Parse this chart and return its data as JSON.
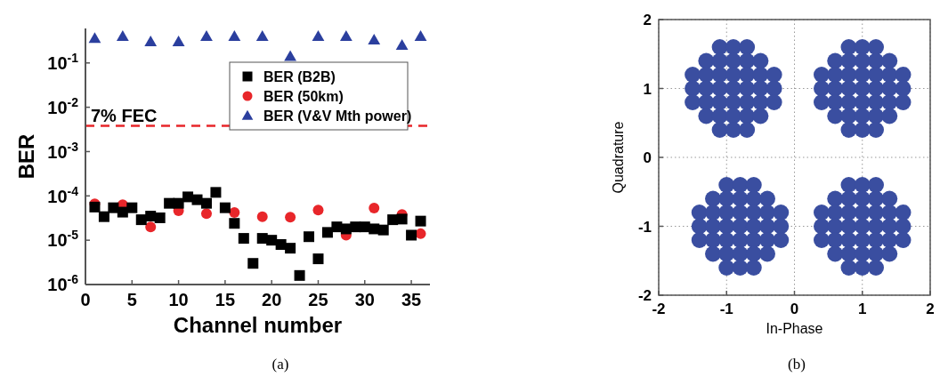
{
  "chart_data": [
    {
      "type": "scatter",
      "xlabel": "Channel number",
      "ylabel": "BER",
      "log": "y",
      "legend": "top right",
      "grid": false,
      "xlim": [
        0,
        37
      ],
      "xticks": [
        0,
        5,
        10,
        15,
        20,
        25,
        30,
        35
      ],
      "ylim": [
        1e-06,
        0.6
      ],
      "yticks": [
        {
          "value": 1e-06,
          "label": "10$^{-6}$"
        },
        {
          "value": 1e-05,
          "label": "10$^{-5}$"
        },
        {
          "value": 0.0001,
          "label": "10$^{-4}$"
        },
        {
          "value": 0.001,
          "label": "10$^{-3}$"
        },
        {
          "value": 0.01,
          "label": "10$^{-2}$"
        },
        {
          "value": 0.1,
          "label": "10$^{-1}$"
        }
      ],
      "ref_lines": [
        {
          "axis": "y",
          "value": 0.0038,
          "label": "7% FEC",
          "color": "#e8262a",
          "line_style": "dashed"
        }
      ],
      "annotations": [
        "(a)"
      ],
      "series": [
        {
          "name": "BER (B2B)",
          "color": "#000000",
          "marker": "square",
          "x": [
            1,
            2,
            3,
            4,
            5,
            6,
            7,
            8,
            9,
            10,
            11,
            12,
            13,
            14,
            15,
            16,
            17,
            18,
            19,
            20,
            21,
            22,
            23,
            24,
            25,
            26,
            27,
            28,
            29,
            30,
            31,
            32,
            33,
            34,
            35,
            36
          ],
          "values": [
            5.6e-05,
            3.4e-05,
            5.4e-05,
            4.3e-05,
            5.4e-05,
            2.9e-05,
            3.5e-05,
            3.2e-05,
            6.8e-05,
            6.8e-05,
            9.5e-05,
            8.2e-05,
            6.8e-05,
            0.00012,
            5.4e-05,
            2.4e-05,
            1.1e-05,
            3e-06,
            1.1e-05,
            1e-05,
            8e-06,
            6.6e-06,
            1.6e-06,
            1.2e-05,
            3.8e-06,
            1.5e-05,
            2e-05,
            1.8e-05,
            2e-05,
            2e-05,
            1.8e-05,
            1.7e-05,
            2.9e-05,
            3e-05,
            1.3e-05,
            2.7e-05
          ]
        },
        {
          "name": "BER (50km)",
          "color": "#e8262a",
          "marker": "circle",
          "x": [
            1,
            4,
            7,
            10,
            13,
            16,
            19,
            22,
            25,
            28,
            31,
            34,
            36
          ],
          "values": [
            6.6e-05,
            6.3e-05,
            2e-05,
            4.6e-05,
            4e-05,
            4.2e-05,
            3.4e-05,
            3.3e-05,
            4.8e-05,
            1.3e-05,
            5.3e-05,
            3.8e-05,
            1.4e-05
          ]
        },
        {
          "name": "BER (V&V Mth power)",
          "color": "#2b3f9e",
          "marker": "triangle",
          "x": [
            1,
            4,
            7,
            10,
            13,
            16,
            19,
            22,
            25,
            28,
            31,
            34,
            36
          ],
          "values": [
            0.36,
            0.4,
            0.3,
            0.3,
            0.4,
            0.4,
            0.4,
            0.14,
            0.4,
            0.4,
            0.33,
            0.25,
            0.4
          ]
        }
      ]
    },
    {
      "type": "scatter",
      "xlabel": "In-Phase",
      "ylabel": "Quadrature",
      "grid": true,
      "xlim": [
        -2,
        2
      ],
      "xticks": [
        -2,
        -1,
        0,
        1,
        2
      ],
      "ylim": [
        -2,
        2
      ],
      "yticks": [
        -2,
        -1,
        0,
        1,
        2
      ],
      "annotations": [
        "(b)"
      ],
      "series": [
        {
          "color": "#3a4ea0",
          "marker": "circle",
          "x": [
            -1.1,
            -0.9,
            -0.7,
            -1.3,
            -1.1,
            -0.9,
            -0.7,
            -0.5,
            -1.5,
            -1.3,
            -1.1,
            -0.9,
            -0.7,
            -0.5,
            -0.3,
            -1.5,
            -1.3,
            -1.1,
            -0.9,
            -0.7,
            -0.5,
            -0.3,
            -1.5,
            -1.3,
            -1.1,
            -0.9,
            -0.7,
            -0.5,
            -0.3,
            -1.3,
            -1.1,
            -0.9,
            -0.7,
            -0.5,
            -1.1,
            -0.9,
            -0.7
          ],
          "values": [
            1.6,
            1.6,
            1.6,
            1.4,
            1.4,
            1.4,
            1.4,
            1.4,
            1.2,
            1.2,
            1.2,
            1.2,
            1.2,
            1.2,
            1.2,
            1.0,
            1.0,
            1.0,
            1.0,
            1.0,
            1.0,
            1.0,
            0.8,
            0.8,
            0.8,
            0.8,
            0.8,
            0.8,
            0.8,
            0.6,
            0.6,
            0.6,
            0.6,
            0.6,
            0.4,
            0.4,
            0.4
          ]
        },
        {
          "color": "#3a4ea0",
          "marker": "circle",
          "x": [
            0.8,
            1.0,
            1.2,
            0.6,
            0.8,
            1.0,
            1.2,
            1.4,
            0.4,
            0.6,
            0.8,
            1.0,
            1.2,
            1.4,
            1.6,
            0.4,
            0.6,
            0.8,
            1.0,
            1.2,
            1.4,
            1.6,
            0.4,
            0.6,
            0.8,
            1.0,
            1.2,
            1.4,
            1.6,
            0.6,
            0.8,
            1.0,
            1.2,
            1.4,
            0.8,
            1.0,
            1.2
          ],
          "values": [
            1.6,
            1.6,
            1.6,
            1.4,
            1.4,
            1.4,
            1.4,
            1.4,
            1.2,
            1.2,
            1.2,
            1.2,
            1.2,
            1.2,
            1.2,
            1.0,
            1.0,
            1.0,
            1.0,
            1.0,
            1.0,
            1.0,
            0.8,
            0.8,
            0.8,
            0.8,
            0.8,
            0.8,
            0.8,
            0.6,
            0.6,
            0.6,
            0.6,
            0.6,
            0.4,
            0.4,
            0.4
          ]
        },
        {
          "color": "#3a4ea0",
          "marker": "circle",
          "x": [
            -1.0,
            -0.8,
            -0.6,
            -1.2,
            -1.0,
            -0.8,
            -0.6,
            -0.4,
            -1.4,
            -1.2,
            -1.0,
            -0.8,
            -0.6,
            -0.4,
            -0.2,
            -1.4,
            -1.2,
            -1.0,
            -0.8,
            -0.6,
            -0.4,
            -0.2,
            -1.4,
            -1.2,
            -1.0,
            -0.8,
            -0.6,
            -0.4,
            -0.2,
            -1.2,
            -1.0,
            -0.8,
            -0.6,
            -0.4,
            -1.0,
            -0.8,
            -0.6
          ],
          "values": [
            -0.4,
            -0.4,
            -0.4,
            -0.6,
            -0.6,
            -0.6,
            -0.6,
            -0.6,
            -0.8,
            -0.8,
            -0.8,
            -0.8,
            -0.8,
            -0.8,
            -0.8,
            -1.0,
            -1.0,
            -1.0,
            -1.0,
            -1.0,
            -1.0,
            -1.0,
            -1.2,
            -1.2,
            -1.2,
            -1.2,
            -1.2,
            -1.2,
            -1.2,
            -1.4,
            -1.4,
            -1.4,
            -1.4,
            -1.4,
            -1.6,
            -1.6,
            -1.6
          ]
        },
        {
          "color": "#3a4ea0",
          "marker": "circle",
          "x": [
            0.8,
            1.0,
            1.2,
            0.6,
            0.8,
            1.0,
            1.2,
            1.4,
            0.4,
            0.6,
            0.8,
            1.0,
            1.2,
            1.4,
            1.6,
            0.4,
            0.6,
            0.8,
            1.0,
            1.2,
            1.4,
            1.6,
            0.4,
            0.6,
            0.8,
            1.0,
            1.2,
            1.4,
            1.6,
            0.6,
            0.8,
            1.0,
            1.2,
            1.4,
            0.8,
            1.0,
            1.2
          ],
          "values": [
            -0.4,
            -0.4,
            -0.4,
            -0.6,
            -0.6,
            -0.6,
            -0.6,
            -0.6,
            -0.8,
            -0.8,
            -0.8,
            -0.8,
            -0.8,
            -0.8,
            -0.8,
            -1.0,
            -1.0,
            -1.0,
            -1.0,
            -1.0,
            -1.0,
            -1.0,
            -1.2,
            -1.2,
            -1.2,
            -1.2,
            -1.2,
            -1.2,
            -1.2,
            -1.4,
            -1.4,
            -1.4,
            -1.4,
            -1.4,
            -1.6,
            -1.6,
            -1.6
          ]
        }
      ]
    }
  ]
}
